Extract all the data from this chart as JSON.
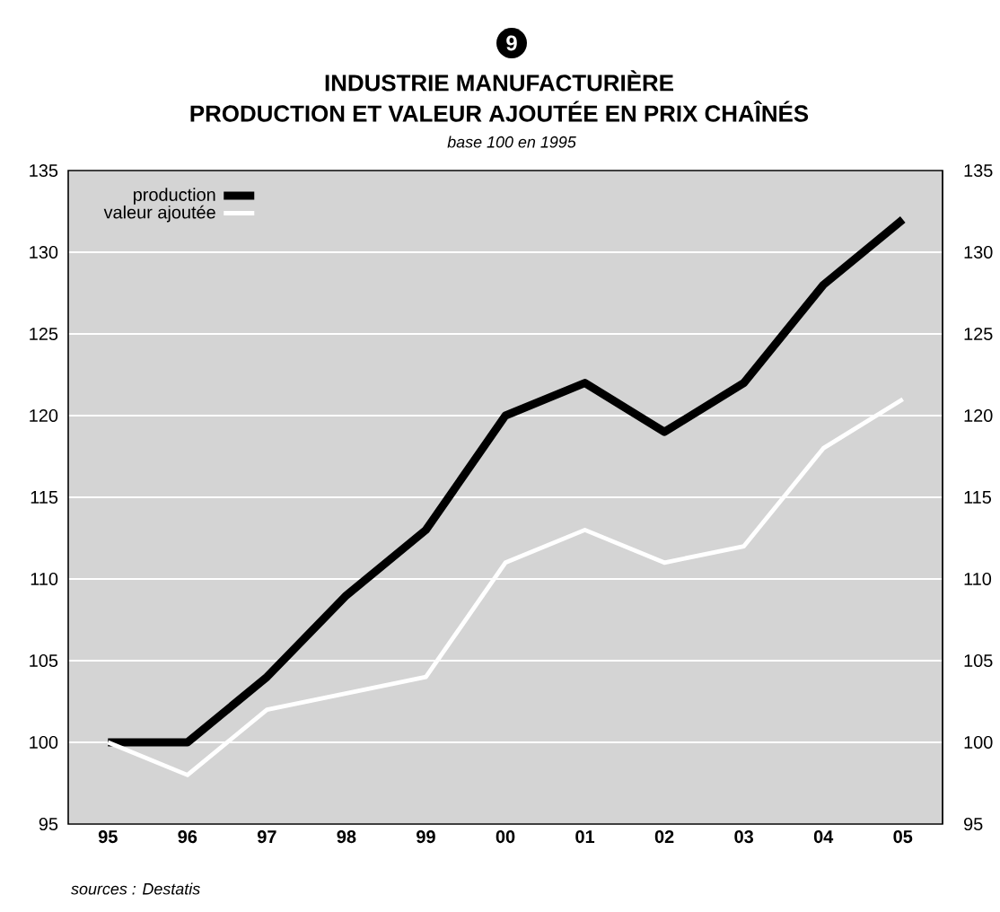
{
  "chart_data": {
    "type": "line",
    "title": "INDUSTRIE MANUFACTURIÈRE",
    "subtitle": "PRODUCTION ET VALEUR AJOUTÉE EN PRIX CHAÎNÉS",
    "annotations": [
      "9",
      "base 100 en 1995",
      "sources : Destatis"
    ],
    "categories": [
      "95",
      "96",
      "97",
      "98",
      "99",
      "00",
      "01",
      "02",
      "03",
      "04",
      "05"
    ],
    "series": [
      {
        "name": "production",
        "color": "#000000",
        "values": [
          100,
          100,
          104,
          109,
          113,
          120,
          122,
          119,
          122,
          128,
          132
        ]
      },
      {
        "name": "valeur ajoutée",
        "color": "#ffffff",
        "values": [
          100,
          98,
          102,
          103,
          104,
          111,
          113,
          111,
          112,
          118,
          121
        ]
      }
    ],
    "ylim": [
      95,
      135
    ],
    "yticks": [
      95,
      100,
      105,
      110,
      115,
      120,
      125,
      130,
      135
    ],
    "y2lim": [
      95,
      135
    ],
    "y2ticks": [
      95,
      100,
      105,
      110,
      115,
      120,
      125,
      130,
      135
    ],
    "grid": "y",
    "legend": "top left",
    "marker": "none",
    "line_style": "solid"
  }
}
